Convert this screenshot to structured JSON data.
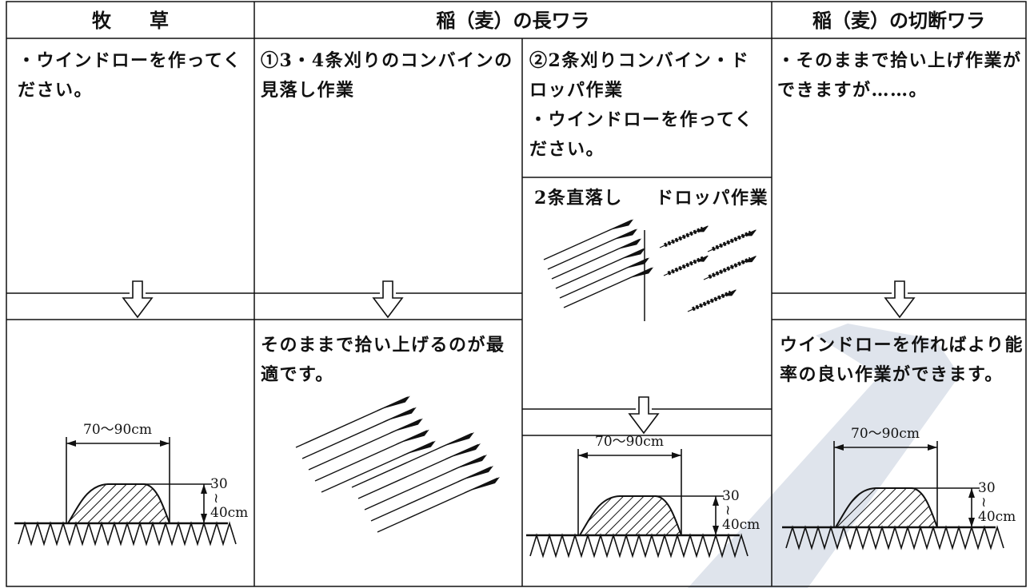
{
  "header": {
    "forage": "牧　　草",
    "long_straw": "稲（麦）の長ワラ",
    "cut_straw": "稲（麦）の切断ワラ"
  },
  "forage": {
    "note": "・ウインドローを作ってください。",
    "windrow": {
      "width": "70〜90cm",
      "height_top": "30",
      "height_sep": "≀",
      "height_bottom": "40cm"
    }
  },
  "long_straw": {
    "combine34": {
      "title": "①3・4条刈りのコンバインの見落し作業",
      "result": "そのままで拾い上げるのが最適です。"
    },
    "combine2": {
      "title": "②2条刈りコンバイン・ドロッパ作業",
      "note": "・ウインドローを作ってください。",
      "direct": "2条直落し",
      "dropper": "ドロッパ作業",
      "windrow": {
        "width": "70〜90cm",
        "height_top": "30",
        "height_sep": "≀",
        "height_bottom": "40cm"
      }
    }
  },
  "cut_straw": {
    "note": "・そのままで拾い上げ作業ができますが……。",
    "result": "ウインドローを作ればより能率の良い作業ができます。",
    "windrow": {
      "width": "70〜90cm",
      "height_top": "30",
      "height_sep": "≀",
      "height_bottom": "40cm"
    }
  }
}
